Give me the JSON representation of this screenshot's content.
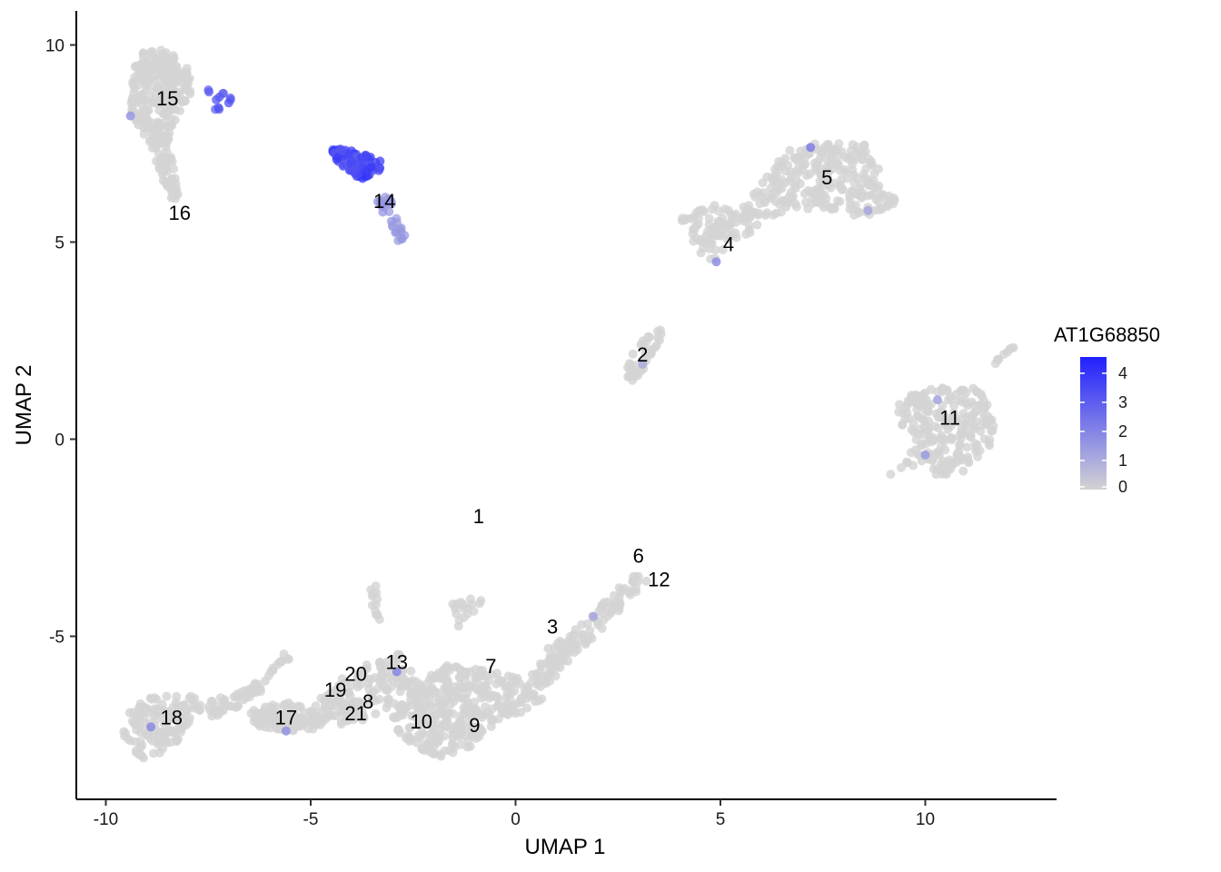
{
  "chart_data": {
    "type": "scatter",
    "xlabel": "UMAP 1",
    "ylabel": "UMAP 2",
    "xlim": [
      -10.7,
      13.2
    ],
    "ylim": [
      -9.0,
      10.9
    ],
    "x_ticks": [
      -10,
      -5,
      0,
      5,
      10
    ],
    "y_ticks": [
      -5,
      0,
      5,
      10
    ],
    "x_tick_labels": [
      "-10",
      "-5",
      "0",
      "5",
      "10"
    ],
    "y_tick_labels": [
      "-5",
      "0",
      "5",
      "10"
    ],
    "grid": false,
    "legend": {
      "title": "AT1G68850",
      "placement": "right",
      "type": "colorbar",
      "range": [
        0,
        4.4
      ],
      "ticks": [
        0,
        1,
        2,
        3,
        4
      ],
      "tick_labels": [
        "0",
        "1",
        "2",
        "3",
        "4"
      ],
      "low_color": "#d3d3d3",
      "high_color": "#2020ff"
    },
    "clusters": [
      {
        "label": "1",
        "x": -0.9,
        "y": -2.0
      },
      {
        "label": "2",
        "x": 3.1,
        "y": 2.1
      },
      {
        "label": "3",
        "x": 0.9,
        "y": -4.8
      },
      {
        "label": "4",
        "x": 5.2,
        "y": 4.9
      },
      {
        "label": "5",
        "x": 7.6,
        "y": 6.6
      },
      {
        "label": "6",
        "x": 3.0,
        "y": -3.0
      },
      {
        "label": "7",
        "x": -0.6,
        "y": -5.8
      },
      {
        "label": "8",
        "x": -3.6,
        "y": -6.7
      },
      {
        "label": "9",
        "x": -1.0,
        "y": -7.3
      },
      {
        "label": "10",
        "x": -2.3,
        "y": -7.2
      },
      {
        "label": "11",
        "x": 10.6,
        "y": 0.5
      },
      {
        "label": "12",
        "x": 3.5,
        "y": -3.6
      },
      {
        "label": "13",
        "x": -2.9,
        "y": -5.7
      },
      {
        "label": "14",
        "x": -3.2,
        "y": 6.0
      },
      {
        "label": "15",
        "x": -8.5,
        "y": 8.6
      },
      {
        "label": "16",
        "x": -8.2,
        "y": 5.7
      },
      {
        "label": "17",
        "x": -5.6,
        "y": -7.1
      },
      {
        "label": "18",
        "x": -8.4,
        "y": -7.1
      },
      {
        "label": "19",
        "x": -4.4,
        "y": -6.4
      },
      {
        "label": "20",
        "x": -3.9,
        "y": -6.0
      },
      {
        "label": "21",
        "x": -3.9,
        "y": -7.0
      }
    ],
    "point_regions": [
      {
        "name": "cluster-15-16",
        "expr": 0.0,
        "shape": "poly",
        "pts": [
          [
            -9.2,
            9.8
          ],
          [
            -8.6,
            9.9
          ],
          [
            -8.0,
            9.5
          ],
          [
            -7.9,
            8.8
          ],
          [
            -8.3,
            8.1
          ],
          [
            -8.5,
            7.5
          ],
          [
            -8.3,
            6.8
          ],
          [
            -8.2,
            6.1
          ],
          [
            -8.4,
            6.1
          ],
          [
            -8.7,
            6.8
          ],
          [
            -8.9,
            7.5
          ],
          [
            -9.2,
            7.9
          ],
          [
            -9.4,
            8.3
          ],
          [
            -9.4,
            9.0
          ]
        ],
        "n": 300
      },
      {
        "name": "cluster-15-expr",
        "expr": 3.2,
        "shape": "poly",
        "pts": [
          [
            -7.5,
            8.9
          ],
          [
            -6.9,
            8.7
          ],
          [
            -6.9,
            8.5
          ],
          [
            -7.3,
            8.3
          ],
          [
            -7.5,
            8.6
          ]
        ],
        "n": 12
      },
      {
        "name": "cluster-14-high",
        "expr": 3.8,
        "shape": "poly",
        "pts": [
          [
            -4.5,
            7.4
          ],
          [
            -3.9,
            7.3
          ],
          [
            -3.3,
            7.1
          ],
          [
            -3.3,
            6.8
          ],
          [
            -3.7,
            6.6
          ],
          [
            -4.0,
            6.7
          ],
          [
            -4.4,
            7.1
          ]
        ],
        "n": 90
      },
      {
        "name": "cluster-14-tail",
        "expr": 1.6,
        "shape": "poly",
        "pts": [
          [
            -3.3,
            6.2
          ],
          [
            -3.0,
            6.1
          ],
          [
            -2.8,
            5.4
          ],
          [
            -2.6,
            5.0
          ],
          [
            -2.8,
            4.9
          ],
          [
            -3.1,
            5.5
          ],
          [
            -3.4,
            6.0
          ]
        ],
        "n": 30
      },
      {
        "name": "cluster-5",
        "expr": 0.0,
        "shape": "poly",
        "pts": [
          [
            5.6,
            6.0
          ],
          [
            6.6,
            7.3
          ],
          [
            7.6,
            7.6
          ],
          [
            8.5,
            7.5
          ],
          [
            8.9,
            6.8
          ],
          [
            9.3,
            6.0
          ],
          [
            8.6,
            5.6
          ],
          [
            7.6,
            5.8
          ],
          [
            6.6,
            5.8
          ],
          [
            5.8,
            5.5
          ],
          [
            5.4,
            5.9
          ]
        ],
        "n": 260
      },
      {
        "name": "cluster-4",
        "expr": 0.0,
        "shape": "poly",
        "pts": [
          [
            4.0,
            5.6
          ],
          [
            4.8,
            6.0
          ],
          [
            5.7,
            5.8
          ],
          [
            6.0,
            5.3
          ],
          [
            5.2,
            5.0
          ],
          [
            4.8,
            4.4
          ],
          [
            4.4,
            4.6
          ],
          [
            4.3,
            5.2
          ]
        ],
        "n": 90
      },
      {
        "name": "cluster-2",
        "expr": 0.0,
        "shape": "poly",
        "pts": [
          [
            3.5,
            2.9
          ],
          [
            3.6,
            2.6
          ],
          [
            3.2,
            1.8
          ],
          [
            2.9,
            1.4
          ],
          [
            2.7,
            1.6
          ],
          [
            2.7,
            2.0
          ],
          [
            3.1,
            2.5
          ]
        ],
        "n": 45
      },
      {
        "name": "cluster-11",
        "expr": 0.0,
        "shape": "poly",
        "pts": [
          [
            9.0,
            -1.0
          ],
          [
            10.1,
            -0.5
          ],
          [
            10.2,
            -1.0
          ],
          [
            11.0,
            -0.8
          ],
          [
            11.7,
            -0.2
          ],
          [
            11.7,
            0.6
          ],
          [
            11.3,
            1.3
          ],
          [
            10.3,
            1.3
          ],
          [
            9.4,
            1.1
          ],
          [
            9.2,
            0.5
          ],
          [
            9.8,
            0.1
          ],
          [
            9.5,
            -0.6
          ]
        ],
        "n": 230
      },
      {
        "name": "cluster-11-tail",
        "expr": 0.0,
        "shape": "poly",
        "pts": [
          [
            11.8,
            2.1
          ],
          [
            12.2,
            2.4
          ],
          [
            12.1,
            2.2
          ],
          [
            11.7,
            1.9
          ]
        ],
        "n": 8
      },
      {
        "name": "cluster-6-12-3",
        "expr": 0.0,
        "shape": "poly",
        "pts": [
          [
            3.3,
            -3.5
          ],
          [
            3.0,
            -3.3
          ],
          [
            2.0,
            -4.3
          ],
          [
            0.8,
            -5.3
          ],
          [
            0.3,
            -6.1
          ],
          [
            0.6,
            -6.4
          ],
          [
            1.4,
            -5.6
          ],
          [
            2.4,
            -4.5
          ]
        ],
        "n": 120
      },
      {
        "name": "cluster-9-10-7",
        "expr": 0.0,
        "shape": "poly",
        "pts": [
          [
            -2.6,
            -6.2
          ],
          [
            -1.6,
            -5.7
          ],
          [
            -0.6,
            -5.9
          ],
          [
            0.6,
            -6.2
          ],
          [
            0.7,
            -6.7
          ],
          [
            -0.5,
            -7.2
          ],
          [
            -1.2,
            -8.0
          ],
          [
            -2.0,
            -8.1
          ],
          [
            -2.8,
            -7.6
          ],
          [
            -3.0,
            -7.0
          ]
        ],
        "n": 350
      },
      {
        "name": "cluster-13-20-19-21-8",
        "expr": 0.0,
        "shape": "poly",
        "pts": [
          [
            -4.5,
            -6.2
          ],
          [
            -3.6,
            -5.7
          ],
          [
            -2.8,
            -5.4
          ],
          [
            -2.4,
            -6.0
          ],
          [
            -2.8,
            -6.7
          ],
          [
            -3.3,
            -7.0
          ],
          [
            -4.3,
            -7.3
          ],
          [
            -4.9,
            -6.8
          ]
        ],
        "n": 150
      },
      {
        "name": "cluster-17",
        "expr": 0.0,
        "shape": "poly",
        "pts": [
          [
            -6.5,
            -6.9
          ],
          [
            -5.8,
            -6.6
          ],
          [
            -5.0,
            -6.8
          ],
          [
            -4.6,
            -7.1
          ],
          [
            -4.9,
            -7.4
          ],
          [
            -5.6,
            -7.4
          ],
          [
            -6.4,
            -7.3
          ]
        ],
        "n": 110
      },
      {
        "name": "cluster-18",
        "expr": 0.0,
        "shape": "poly",
        "pts": [
          [
            -9.5,
            -6.9
          ],
          [
            -8.8,
            -6.5
          ],
          [
            -7.9,
            -6.5
          ],
          [
            -7.6,
            -6.8
          ],
          [
            -8.0,
            -7.2
          ],
          [
            -8.2,
            -7.6
          ],
          [
            -8.8,
            -8.2
          ],
          [
            -9.4,
            -8.0
          ],
          [
            -9.6,
            -7.5
          ]
        ],
        "n": 140
      },
      {
        "name": "bridge-18-17",
        "expr": 0.0,
        "shape": "poly",
        "pts": [
          [
            -7.6,
            -6.7
          ],
          [
            -6.5,
            -6.3
          ],
          [
            -5.6,
            -5.4
          ],
          [
            -5.5,
            -5.6
          ],
          [
            -6.4,
            -6.6
          ],
          [
            -7.4,
            -7.1
          ]
        ],
        "n": 60
      },
      {
        "name": "strand-upper",
        "expr": 0.0,
        "shape": "poly",
        "pts": [
          [
            -3.6,
            -3.6
          ],
          [
            -3.4,
            -3.7
          ],
          [
            -3.3,
            -4.6
          ],
          [
            -3.5,
            -4.6
          ]
        ],
        "n": 12
      },
      {
        "name": "strand-mid",
        "expr": 0.0,
        "shape": "poly",
        "pts": [
          [
            -1.6,
            -4.2
          ],
          [
            -0.8,
            -3.9
          ],
          [
            -0.7,
            -4.1
          ],
          [
            -1.2,
            -4.6
          ],
          [
            -1.4,
            -4.9
          ],
          [
            -1.6,
            -4.5
          ]
        ],
        "n": 18
      }
    ],
    "expressing_points": [
      {
        "x": -9.4,
        "y": 8.2,
        "expr": 1.5
      },
      {
        "x": -8.9,
        "y": -7.3,
        "expr": 1.8
      },
      {
        "x": -5.6,
        "y": -7.4,
        "expr": 1.6
      },
      {
        "x": -2.9,
        "y": -5.9,
        "expr": 1.9
      },
      {
        "x": 4.9,
        "y": 4.5,
        "expr": 1.7
      },
      {
        "x": 7.2,
        "y": 7.4,
        "expr": 2.1
      },
      {
        "x": 10.0,
        "y": -0.4,
        "expr": 1.4
      },
      {
        "x": 10.3,
        "y": 1.0,
        "expr": 1.2
      },
      {
        "x": 8.6,
        "y": 5.8,
        "expr": 1.1
      },
      {
        "x": 3.1,
        "y": 1.9,
        "expr": 1.0
      },
      {
        "x": 1.9,
        "y": -4.5,
        "expr": 1.1
      }
    ]
  }
}
